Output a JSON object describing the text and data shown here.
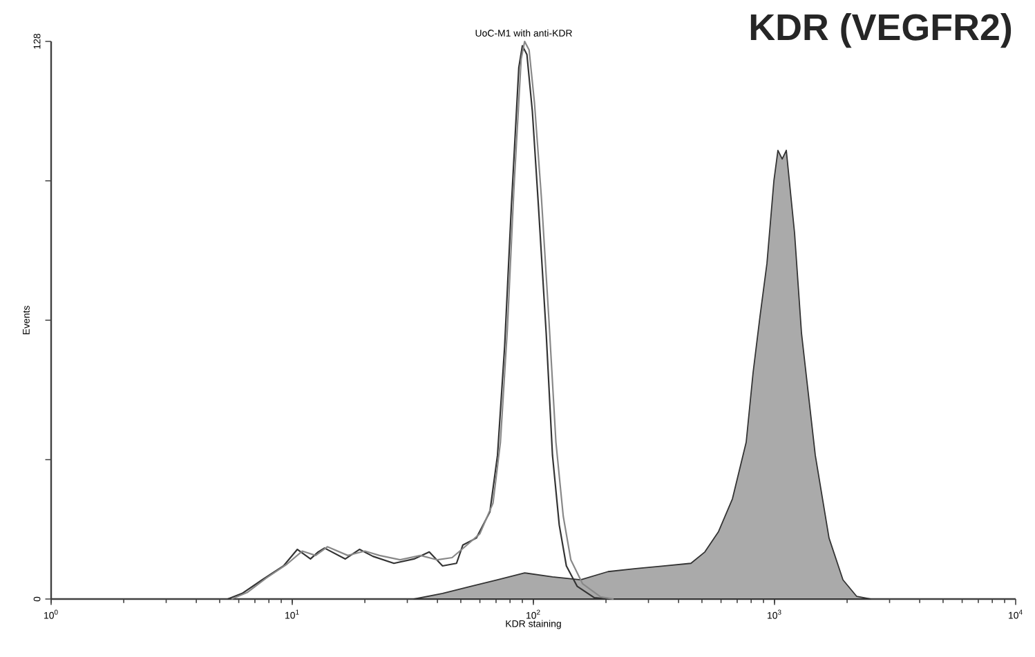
{
  "chart_data": {
    "type": "line",
    "title": "KDR (VEGFR2)",
    "xlabel": "KDR staining",
    "ylabel": "Events",
    "annotations": [
      "UoC-M1 with anti-KDR"
    ],
    "log": "x",
    "xlim": [
      1,
      10000
    ],
    "xticks": [
      {
        "value": 1,
        "label": "10$^{0}$"
      },
      {
        "value": 10,
        "label": "10$^{1}$"
      },
      {
        "value": 100,
        "label": "10$^{2}$"
      },
      {
        "value": 1000,
        "label": "10$^{3}$"
      },
      {
        "value": 10000,
        "label": "10$^{4}$"
      }
    ],
    "ylim": [
      0,
      128
    ],
    "yticks": [
      0,
      {
        "value": 32,
        "label": null
      },
      {
        "value": 64,
        "label": null
      },
      {
        "value": 96,
        "label": null
      },
      128
    ],
    "grid": false,
    "series": [
      {
        "type": "area",
        "color": "#aaaaaa",
        "x": [
          32,
          42,
          55,
          71,
          92,
          120,
          157,
          204,
          266,
          346,
          450,
          514,
          586,
          669,
          763,
          815,
          871,
          930,
          994,
          1033,
          1076,
          1119,
          1211,
          1294,
          1476,
          1683,
          1923,
          2193,
          2500
        ],
        "values": [
          0,
          1.3,
          2.9,
          4.4,
          6.0,
          5.1,
          4.4,
          6.3,
          7.0,
          7.6,
          8.2,
          10.8,
          15.5,
          23,
          36,
          52,
          65,
          77,
          96,
          103,
          101,
          103,
          84,
          61,
          33,
          14,
          4.4,
          0.6,
          0
        ]
      },
      {
        "color": "#333333",
        "x": [
          5.4,
          6.2,
          7.5,
          9.2,
          10.5,
          11.9,
          12.8,
          13.6,
          16.6,
          19.0,
          21.6,
          26.4,
          32,
          37,
          42,
          48,
          51,
          58,
          66,
          71,
          76,
          81,
          87,
          90,
          94,
          99,
          105,
          113,
          120,
          128,
          137,
          152,
          179,
          204
        ],
        "values": [
          0,
          1.3,
          4.4,
          7.6,
          11.4,
          9.2,
          10.8,
          11.7,
          9.2,
          11.4,
          9.8,
          8.2,
          9.2,
          10.8,
          7.6,
          8.2,
          12.4,
          14,
          20,
          33,
          58,
          90,
          122,
          127,
          125,
          112,
          90,
          61,
          33,
          17,
          7.6,
          2.9,
          0.3,
          0
        ]
      },
      {
        "color": "#888888",
        "x": [
          5.6,
          6.5,
          7.8,
          9.5,
          11,
          12.5,
          14,
          17,
          20,
          23,
          28,
          34,
          40,
          46,
          52,
          60,
          68,
          73,
          78,
          83,
          89,
          92,
          96,
          101,
          108,
          116,
          124,
          133,
          143,
          160,
          190,
          215
        ],
        "values": [
          0,
          1.5,
          4.8,
          8,
          11,
          10,
          12,
          10,
          11,
          10,
          9,
          10,
          9,
          9.5,
          12,
          15,
          22,
          36,
          62,
          94,
          124,
          128,
          126,
          114,
          92,
          64,
          36,
          19,
          9,
          3.5,
          0.5,
          0
        ]
      }
    ]
  }
}
